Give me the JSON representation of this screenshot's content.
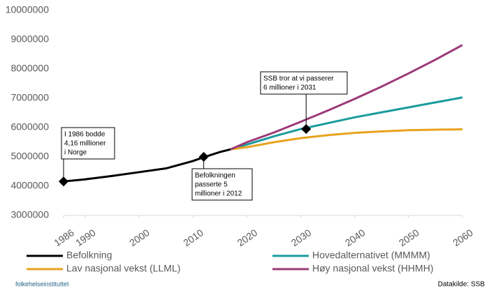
{
  "chart_data": {
    "type": "line",
    "x_series_note_free": null,
    "ylim": [
      3000000,
      10000000
    ],
    "yticks": [
      3000000,
      4000000,
      5000000,
      6000000,
      7000000,
      8000000,
      9000000,
      10000000
    ],
    "xlim": [
      1986,
      2060
    ],
    "xticks": [
      1986,
      1990,
      2000,
      2010,
      2020,
      2030,
      2040,
      2050,
      2060
    ],
    "grid": false,
    "series": [
      {
        "name": "Befolkning",
        "color": "#000000",
        "x": [
          1986,
          1990,
          1995,
          2000,
          2005,
          2010,
          2012,
          2015,
          2017
        ],
        "values": [
          4160000,
          4233000,
          4348000,
          4478000,
          4606000,
          4858000,
          4986000,
          5166000,
          5258000
        ]
      },
      {
        "name": "Hovedalternativet (MMMM)",
        "color": "#1a9b9b",
        "x": [
          2017,
          2020,
          2025,
          2030,
          2035,
          2040,
          2045,
          2050,
          2055,
          2060
        ],
        "values": [
          5258000,
          5420000,
          5700000,
          5950000,
          6150000,
          6350000,
          6520000,
          6690000,
          6860000,
          7030000
        ]
      },
      {
        "name": "Lav nasjonal vekst (LLML)",
        "color": "#e8a21d",
        "x": [
          2017,
          2020,
          2025,
          2030,
          2035,
          2040,
          2045,
          2050,
          2055,
          2060
        ],
        "values": [
          5258000,
          5330000,
          5500000,
          5640000,
          5740000,
          5820000,
          5870000,
          5910000,
          5930000,
          5940000
        ]
      },
      {
        "name": "Høy nasjonal vekst (HHMH)",
        "color": "#9b3a78",
        "x": [
          2017,
          2020,
          2025,
          2030,
          2035,
          2040,
          2045,
          2050,
          2055,
          2060
        ],
        "values": [
          5258000,
          5500000,
          5830000,
          6200000,
          6580000,
          6980000,
          7400000,
          7850000,
          8320000,
          8820000
        ]
      }
    ],
    "annotations": [
      {
        "x": 1986,
        "y": 4160000,
        "lines": [
          "I 1986 bodde",
          "4,16 millioner",
          "i Norge"
        ]
      },
      {
        "x": 2012,
        "y": 5000000,
        "lines": [
          "Befolkningen",
          "passerte 5",
          "millioner i 2012"
        ]
      },
      {
        "x": 2031,
        "y": 5950000,
        "lines": [
          "SSB tror at vi passerer",
          "6 millioner i 2031"
        ]
      }
    ]
  },
  "footer": {
    "logo": "folkehelseinstituttet",
    "source": "Datakilde: SSB"
  }
}
